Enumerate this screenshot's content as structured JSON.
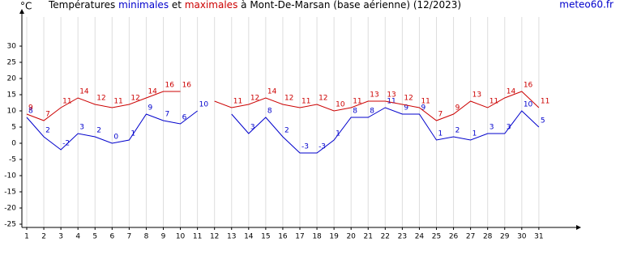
{
  "chart_data": {
    "type": "line",
    "title": [
      "Températures",
      "minimales",
      "et",
      "maximales",
      "à Mont-De-Marsan (base aérienne) (12/2023)"
    ],
    "source": "meteo60.fr",
    "y_label": "°C",
    "x": [
      1,
      2,
      3,
      4,
      5,
      6,
      7,
      8,
      9,
      10,
      11,
      12,
      13,
      14,
      15,
      16,
      17,
      18,
      19,
      20,
      21,
      22,
      23,
      24,
      25,
      26,
      27,
      28,
      29,
      30,
      31
    ],
    "series": [
      {
        "name": "minimales",
        "color": "#0000cc",
        "values": [
          8,
          2,
          -2,
          3,
          2,
          0,
          1,
          9,
          7,
          6,
          10,
          null,
          9,
          3,
          8,
          2,
          -3,
          -3,
          1,
          8,
          8,
          11,
          9,
          9,
          1,
          2,
          1,
          3,
          3,
          10,
          5
        ],
        "value_labels": [
          "8",
          "2",
          "-2",
          "3",
          "2",
          "0",
          "1",
          "9",
          "7",
          "6",
          "10",
          null,
          null,
          "3",
          "8",
          "2",
          "-3",
          "-3",
          "1",
          "8",
          "8",
          "11",
          "9",
          "9",
          "1",
          "2",
          "1",
          "3",
          "3",
          "10",
          "5"
        ]
      },
      {
        "name": "maximales",
        "color": "#cc0000",
        "values": [
          9,
          7,
          11,
          14,
          12,
          11,
          12,
          14,
          16,
          16,
          null,
          13,
          11,
          12,
          14,
          12,
          11,
          12,
          10,
          11,
          13,
          13,
          12,
          11,
          7,
          9,
          13,
          11,
          14,
          16,
          11
        ],
        "value_labels": [
          "9",
          "7",
          "11",
          "14",
          "12",
          "11",
          "12",
          "14",
          "16",
          "16",
          null,
          null,
          "11",
          "12",
          "14",
          "12",
          "11",
          "12",
          "10",
          "11",
          "13",
          "13",
          "12",
          "11",
          "7",
          "9",
          "13",
          "11",
          "14",
          "16",
          "11"
        ]
      }
    ],
    "xlim": [
      1,
      33
    ],
    "xticks": [
      1,
      2,
      3,
      4,
      5,
      6,
      7,
      8,
      9,
      10,
      11,
      12,
      13,
      14,
      15,
      16,
      17,
      18,
      19,
      20,
      21,
      22,
      23,
      24,
      25,
      26,
      27,
      28,
      29,
      30,
      31
    ],
    "ylim": [
      -26,
      39
    ],
    "yticks": [
      -25,
      -20,
      -15,
      -10,
      -5,
      0,
      5,
      10,
      15,
      20,
      25,
      30
    ],
    "grid": true
  }
}
